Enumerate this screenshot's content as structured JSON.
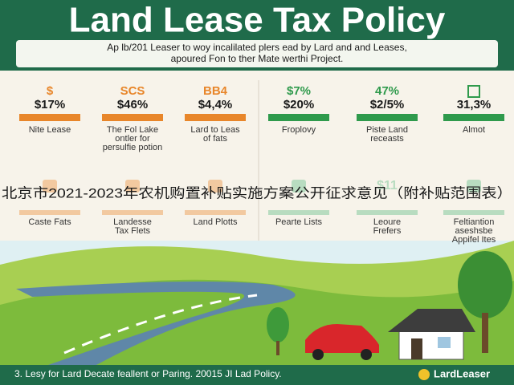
{
  "header": {
    "title": "Land Lease Tax Policy",
    "subtitle": [
      "Ap lb/201 Leaser to woy incalilated plers ead by Lard and and Leases,",
      "apoured Fon to ther Mate werthi Project."
    ]
  },
  "stats_top": [
    {
      "icon": "$",
      "value": "$17%",
      "caption": [
        "Nite Lease"
      ]
    },
    {
      "icon": "SCS",
      "value": "$46%",
      "caption": [
        "The Fol Lake",
        "ontler for",
        "persulfie potion"
      ]
    },
    {
      "icon": "BB4",
      "value": "$4,4%",
      "caption": [
        "Lard to Leas",
        "of fats"
      ]
    },
    {
      "icon": "$7%",
      "value": "$20%",
      "caption": [
        "Froplovy"
      ]
    },
    {
      "icon": "47%",
      "value": "$2/5%",
      "caption": [
        "Piste Land",
        "receasts"
      ]
    },
    {
      "value": "31,3%",
      "caption": [
        "Almot"
      ]
    }
  ],
  "overlay": "北京市2021-2023年农机购置补贴实施方案公开征求意见（附补贴范围表）",
  "stats_bottom": [
    {
      "caption": [
        "Caste Fats"
      ]
    },
    {
      "caption": [
        "Landesse",
        "Tax Flets"
      ]
    },
    {
      "caption": [
        "Land Plotts"
      ]
    },
    {
      "caption": [
        "Pearte Lists"
      ]
    },
    {
      "icon": "$11",
      "caption": [
        "Leoure",
        "Frefers"
      ]
    },
    {
      "caption": [
        "Feltiantion",
        "aseshsbe",
        "Appifel Ites"
      ]
    }
  ],
  "footer": {
    "text": "3. Lesy for Lard Decate feallent or Paring. 20015 JI Lad Policy.",
    "logo": "LardLeaser"
  }
}
